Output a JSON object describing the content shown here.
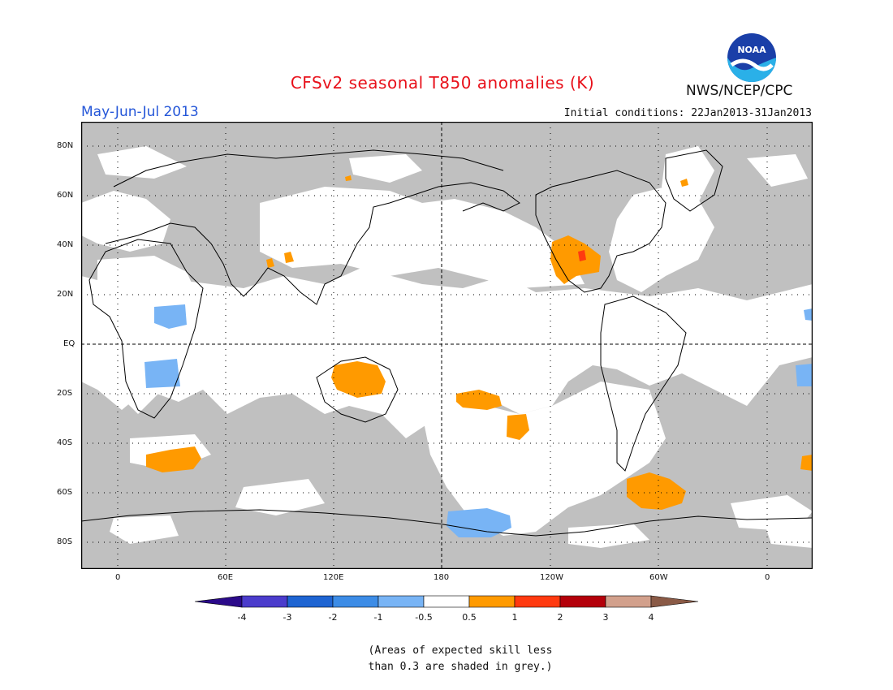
{
  "header": {
    "title": "CFSv2 seasonal T850 anomalies (K)",
    "season": "May-Jun-Jul 2013",
    "initial_conditions": "Initial conditions: 22Jan2013-31Jan2013",
    "agency": "NWS/NCEP/CPC",
    "logo_text": "NOAA"
  },
  "map": {
    "lat_labels": [
      "80N",
      "60N",
      "40N",
      "20N",
      "EQ",
      "20S",
      "40S",
      "60S",
      "80S"
    ],
    "lon_labels": [
      "0",
      "60E",
      "120E",
      "180",
      "120W",
      "60W",
      "0"
    ],
    "colors": {
      "skill_mask": "#c0c0c0",
      "ocean_land_default": "#ffffff",
      "warm_0_5_to_1": "#ff9a00",
      "warm_1_to_2": "#ff3a10",
      "cool_neg1_to_neg0_5": "#78b4f5"
    }
  },
  "legend": {
    "labels": [
      "-4",
      "-3",
      "-2",
      "-1",
      "-0.5",
      "0.5",
      "1",
      "2",
      "3",
      "4"
    ],
    "colors": [
      "#2b0a8a",
      "#4b3ccc",
      "#1e64d2",
      "#3c8ce6",
      "#78b4f5",
      "#ffffff",
      "#ff9a00",
      "#ff3a10",
      "#b4000a",
      "#d2a08c",
      "#8a5a46"
    ]
  },
  "note": {
    "line1": "(Areas of expected skill less",
    "line2": "than 0.3 are shaded in grey.)"
  }
}
